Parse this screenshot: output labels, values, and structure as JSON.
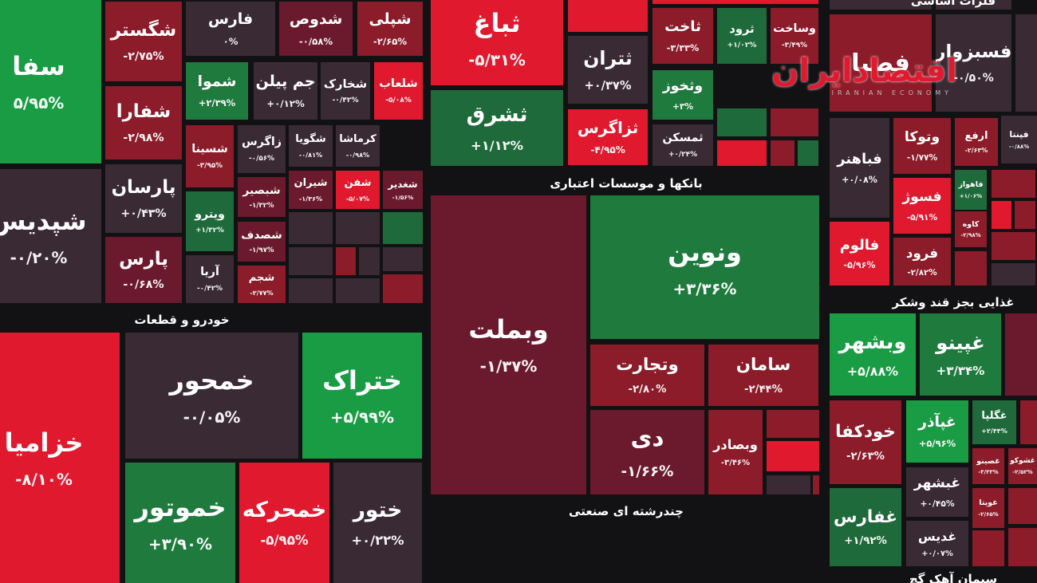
{
  "logo": {
    "title": "اقتصادایران",
    "subtitle": "IRANIAN ECONOMY"
  },
  "sectors": [
    "خودرو و قطعات",
    "بانکها و موسسات اعتباری",
    "چندرشته ای صنعتی",
    "غذایی بجز قند وشکر",
    "فلزات اساسی",
    "سیمان آهک گچ"
  ],
  "tiles": [
    {
      "name": "سفا",
      "change": "۵/۹۵%"
    },
    {
      "name": "شپدیس",
      "change": "-۰/۲۰%"
    },
    {
      "name": "خزامیا",
      "change": "-۸/۱۰%"
    },
    {
      "name": "شگستر",
      "change": "-۲/۷۵%"
    },
    {
      "name": "شفارا",
      "change": "-۲/۹۸%"
    },
    {
      "name": "پارسان",
      "change": "+۰/۴۳%"
    },
    {
      "name": "پارس",
      "change": "-۰/۶۸%"
    },
    {
      "name": "فارس",
      "change": "۰%"
    },
    {
      "name": "شموا",
      "change": "+۲/۳۹%"
    },
    {
      "name": "شسینا",
      "change": "-۳/۹۵%"
    },
    {
      "name": "ویترو",
      "change": "+۱/۳۲%"
    },
    {
      "name": "آریا",
      "change": "-۰/۴۲%"
    },
    {
      "name": "شدوص",
      "change": "-۰/۵۸%"
    },
    {
      "name": "شپلی",
      "change": "-۲/۶۵%"
    },
    {
      "name": "جم پیلن",
      "change": "+۰/۱۲%"
    },
    {
      "name": "شخارک",
      "change": "-۰/۴۲%"
    },
    {
      "name": "شلعاب",
      "change": "-۵/۰۸%"
    },
    {
      "name": "زاگرس",
      "change": "-۰/۵۶%"
    },
    {
      "name": "شگویا",
      "change": "-۰/۸۱%"
    },
    {
      "name": "کرماشا",
      "change": "-۰/۹۸%"
    },
    {
      "name": "شبصیر",
      "change": "-۱/۳۲%"
    },
    {
      "name": "شیران",
      "change": "-۱/۳۶%"
    },
    {
      "name": "شفن",
      "change": "-۵/۰۷%"
    },
    {
      "name": "شغدیر",
      "change": "-۱/۵۶%"
    },
    {
      "name": "شصدف",
      "change": "-۱/۹۷%"
    },
    {
      "name": "شجم",
      "change": "-۲/۷۷%"
    },
    {
      "name": "خمحور",
      "change": "-۰/۰۵%"
    },
    {
      "name": "ختراک",
      "change": "+۵/۹۹%"
    },
    {
      "name": "خموتور",
      "change": "+۳/۹۰%"
    },
    {
      "name": "خمحرکه",
      "change": "-۵/۹۵%"
    },
    {
      "name": "ختور",
      "change": "+۰/۲۲%"
    },
    {
      "name": "ثباغ",
      "change": "-۵/۳۱%"
    },
    {
      "name": "ثشرق",
      "change": "+۱/۱۲%"
    },
    {
      "name": "ثتران",
      "change": "+۰/۳۷%"
    },
    {
      "name": "ثزاگرس",
      "change": "-۴/۹۵%"
    },
    {
      "name": "ثاخت",
      "change": "-۳/۳۳%"
    },
    {
      "name": "ثرود",
      "change": "+۱/۰۲%"
    },
    {
      "name": "وساخت",
      "change": "-۳/۴۹%"
    },
    {
      "name": "وثخوز",
      "change": "+۳%"
    },
    {
      "name": "ثمسکن",
      "change": "+۰/۲۴%"
    },
    {
      "name": "وبملت",
      "change": "-۱/۳۷%"
    },
    {
      "name": "ونوین",
      "change": "+۳/۳۶%"
    },
    {
      "name": "وتجارت",
      "change": "-۲/۸۰%"
    },
    {
      "name": "سامان",
      "change": "-۲/۴۴%"
    },
    {
      "name": "دی",
      "change": "-۱/۶۶%"
    },
    {
      "name": "وبصادر",
      "change": "-۳/۴۶%"
    },
    {
      "name": "فصبا"
    },
    {
      "name": "فسبزوار",
      "change": "-۰/۵۰%"
    },
    {
      "name": "فپنتا",
      "change": "-۰/۸۸%"
    },
    {
      "name": "فباهنر",
      "change": "+۰/۰۸%"
    },
    {
      "name": "وتوکا",
      "change": "-۱/۷۷%"
    },
    {
      "name": "ارفع",
      "change": "-۲/۶۳%"
    },
    {
      "name": "فسوژ",
      "change": "-۵/۹۱%"
    },
    {
      "name": "فاهواز",
      "change": "+۱/۰۶%"
    },
    {
      "name": "کاوه",
      "change": "-۲/۹۸%"
    },
    {
      "name": "فالوم",
      "change": "-۵/۹۶%"
    },
    {
      "name": "فرود",
      "change": "-۲/۸۲%"
    },
    {
      "name": "وبشهر",
      "change": "+۵/۸۸%"
    },
    {
      "name": "غپینو",
      "change": "+۳/۳۴%"
    },
    {
      "name": "خودکفا",
      "change": "-۲/۶۳%"
    },
    {
      "name": "غپآذر",
      "change": "+۵/۹۶%"
    },
    {
      "name": "غگلپا",
      "change": "+۲/۴۴%"
    },
    {
      "name": "غبشهر",
      "change": "+۰/۴۵%"
    },
    {
      "name": "غفارس",
      "change": "+۱/۹۲%"
    },
    {
      "name": "غدیس",
      "change": "+۰/۰۷%"
    },
    {
      "name": "غصینو",
      "change": "-۳/۳۳%"
    },
    {
      "name": "غشوکو",
      "change": "-۲/۵۲%"
    },
    {
      "name": "غویتا",
      "change": "-۲/۶۵%"
    }
  ]
}
